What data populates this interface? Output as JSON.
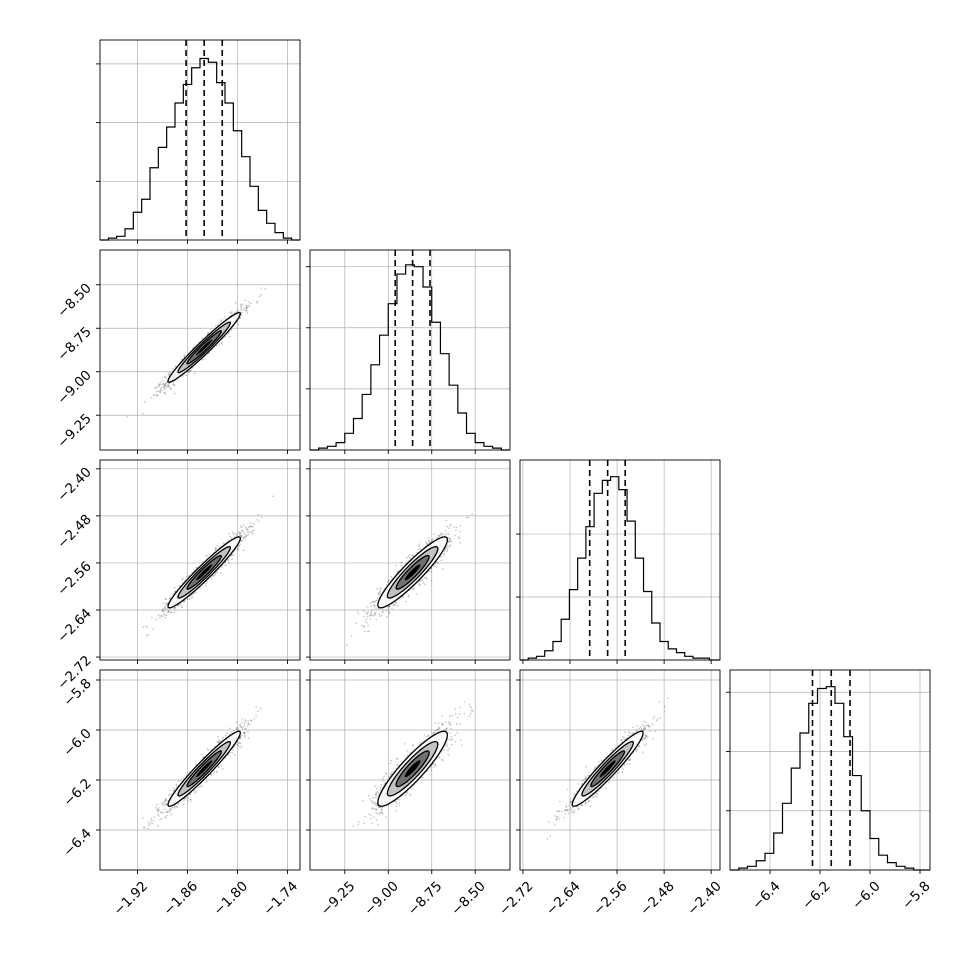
{
  "chart_data": {
    "type": "corner",
    "grid": true,
    "parameters": [
      {
        "range": [
          -1.965,
          -1.725
        ],
        "ticks": [
          -1.92,
          -1.86,
          -1.8,
          -1.74
        ],
        "tick_labels": [
          "−1.92",
          "−1.86",
          "−1.80",
          "−1.74"
        ],
        "quantiles": [
          -1.8617,
          -1.84,
          -1.8183
        ],
        "histogram": {
          "bin_edges": [
            -1.965,
            -1.955,
            -1.945,
            -1.935,
            -1.925,
            -1.915,
            -1.905,
            -1.895,
            -1.885,
            -1.875,
            -1.865,
            -1.855,
            -1.845,
            -1.835,
            -1.825,
            -1.815,
            -1.805,
            -1.795,
            -1.785,
            -1.775,
            -1.765,
            -1.755,
            -1.745,
            -1.735,
            -1.725
          ],
          "counts": [
            0,
            0.01,
            0.02,
            0.06,
            0.15,
            0.22,
            0.39,
            0.5,
            0.61,
            0.74,
            0.84,
            0.93,
            0.98,
            0.96,
            0.85,
            0.74,
            0.59,
            0.45,
            0.29,
            0.16,
            0.09,
            0.04,
            0.01,
            0
          ],
          "y_ticks": [
            0.317,
            0.634,
            0.951
          ]
        }
      },
      {
        "range": [
          -9.45,
          -8.3
        ],
        "ticks": [
          -9.25,
          -9.0,
          -8.75,
          -8.5
        ],
        "tick_labels": [
          "−9.25",
          "−9.00",
          "−8.75",
          "−8.50"
        ],
        "quantiles": [
          -8.96,
          -8.86,
          -8.76
        ],
        "histogram": {
          "bin_edges": [
            -9.45,
            -9.4,
            -9.35,
            -9.3,
            -9.25,
            -9.2,
            -9.15,
            -9.1,
            -9.05,
            -9.0,
            -8.95,
            -8.9,
            -8.85,
            -8.8,
            -8.75,
            -8.7,
            -8.65,
            -8.6,
            -8.55,
            -8.5,
            -8.45,
            -8.4,
            -8.35,
            -8.3
          ],
          "counts": [
            0,
            0.01,
            0.02,
            0.04,
            0.09,
            0.17,
            0.3,
            0.46,
            0.62,
            0.79,
            0.95,
            1.0,
            0.99,
            0.88,
            0.69,
            0.52,
            0.35,
            0.2,
            0.09,
            0.04,
            0.02,
            0.01,
            0
          ],
          "y_ticks": [
            0.33,
            0.66,
            0.99
          ]
        }
      },
      {
        "range": [
          -2.725,
          -2.385
        ],
        "ticks": [
          -2.72,
          -2.64,
          -2.56,
          -2.48,
          -2.4
        ],
        "tick_labels": [
          "−2.72",
          "−2.64",
          "−2.56",
          "−2.48",
          "−2.40"
        ],
        "quantiles": [
          -2.6065,
          -2.576,
          -2.5462
        ],
        "histogram": {
          "bin_edges": [
            -2.725,
            -2.711,
            -2.697,
            -2.683,
            -2.669,
            -2.655,
            -2.641,
            -2.627,
            -2.613,
            -2.599,
            -2.585,
            -2.571,
            -2.557,
            -2.543,
            -2.529,
            -2.515,
            -2.501,
            -2.487,
            -2.473,
            -2.459,
            -2.445,
            -2.431,
            -2.417,
            -2.403,
            -2.385
          ],
          "counts": [
            0,
            0.01,
            0.02,
            0.05,
            0.1,
            0.22,
            0.38,
            0.55,
            0.72,
            0.9,
            0.97,
            0.99,
            0.92,
            0.75,
            0.55,
            0.37,
            0.2,
            0.1,
            0.06,
            0.04,
            0.02,
            0.01,
            0.01,
            0
          ],
          "y_ticks": [
            0.34,
            0.68
          ]
        }
      },
      {
        "range": [
          -6.56,
          -5.76
        ],
        "ticks": [
          -6.4,
          -6.2,
          -6.0,
          -5.8
        ],
        "tick_labels": [
          "−6.4",
          "−6.2",
          "−6.0",
          "−5.8"
        ],
        "quantiles": [
          -6.23,
          -6.155,
          -6.08
        ],
        "histogram": {
          "bin_edges": [
            -6.56,
            -6.525,
            -6.49,
            -6.455,
            -6.42,
            -6.385,
            -6.35,
            -6.315,
            -6.28,
            -6.245,
            -6.21,
            -6.175,
            -6.14,
            -6.105,
            -6.07,
            -6.035,
            -6.0,
            -5.965,
            -5.93,
            -5.895,
            -5.86,
            -5.825,
            -5.79,
            -5.76
          ],
          "counts": [
            0,
            0.01,
            0.02,
            0.05,
            0.09,
            0.2,
            0.36,
            0.55,
            0.74,
            0.9,
            0.98,
            0.99,
            0.9,
            0.72,
            0.51,
            0.32,
            0.17,
            0.08,
            0.04,
            0.02,
            0.01,
            0,
            0
          ],
          "y_ticks": [
            0.32,
            0.64,
            0.96
          ]
        }
      }
    ],
    "scatter_panels": [
      {
        "x_param": 0,
        "y_param": 1,
        "correlation": 0.97
      },
      {
        "x_param": 0,
        "y_param": 2,
        "correlation": 0.96
      },
      {
        "x_param": 1,
        "y_param": 2,
        "correlation": 0.92
      },
      {
        "x_param": 0,
        "y_param": 3,
        "correlation": 0.96
      },
      {
        "x_param": 1,
        "y_param": 3,
        "correlation": 0.9
      },
      {
        "x_param": 2,
        "y_param": 3,
        "correlation": 0.95
      }
    ],
    "colors": {
      "points": "#555555",
      "contour_fill_dark": "#000000",
      "contour_fill_mid": "#6b6b6b",
      "contour_fill_light": "#bfbfbf",
      "grid": "#b0b0b0",
      "line": "#000000"
    }
  }
}
